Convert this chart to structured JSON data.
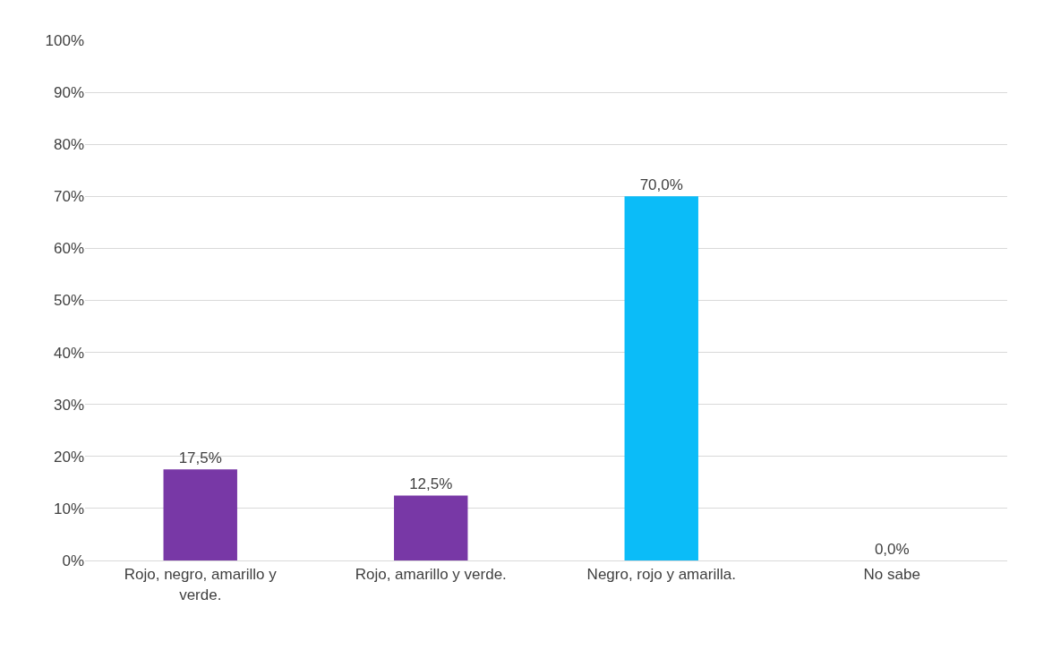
{
  "chart_data": {
    "type": "bar",
    "categories": [
      "Rojo, negro, amarillo y verde.",
      "Rojo, amarillo y verde.",
      "Negro, rojo y amarilla.",
      "No sabe"
    ],
    "values": [
      17.5,
      12.5,
      70,
      0
    ],
    "colors": [
      "#7838a6",
      "#7838a6",
      "#0bbcf8",
      "#7838a6"
    ],
    "value_labels": [
      "17,5%",
      "12,5%",
      "70,0%",
      "0,0%"
    ],
    "ylim": [
      0,
      100
    ],
    "yticks": [
      {
        "value": 0,
        "label": "0%"
      },
      {
        "value": 10,
        "label": "10%"
      },
      {
        "value": 20,
        "label": "20%"
      },
      {
        "value": 30,
        "label": "30%"
      },
      {
        "value": 40,
        "label": "40%"
      },
      {
        "value": 50,
        "label": "50%"
      },
      {
        "value": 60,
        "label": "60%"
      },
      {
        "value": 70,
        "label": "70%"
      },
      {
        "value": 80,
        "label": "80%"
      },
      {
        "value": 90,
        "label": "90%"
      },
      {
        "value": 100,
        "label": "100%"
      }
    ],
    "grid": "y"
  }
}
